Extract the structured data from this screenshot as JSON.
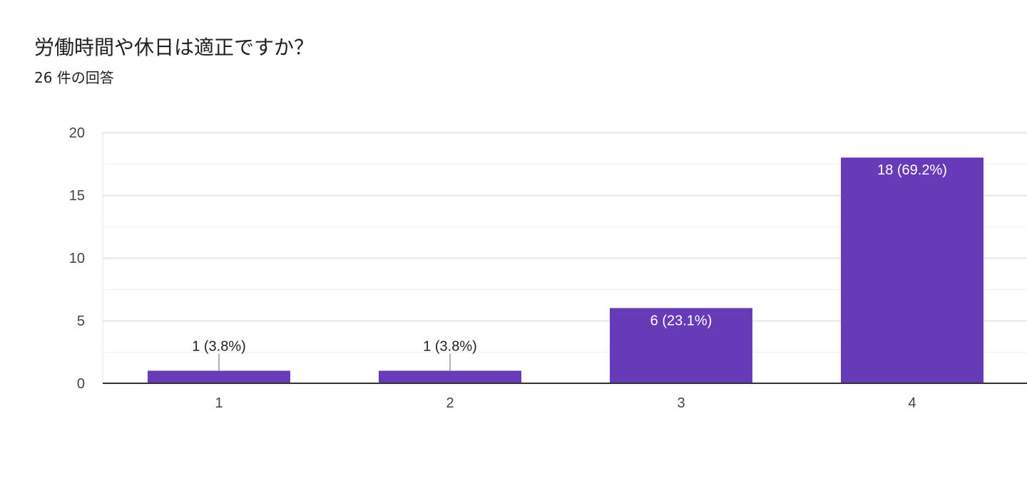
{
  "header": {
    "title": "労働時間や休日は適正ですか？",
    "subtitle": "26 件の回答"
  },
  "colors": {
    "bar": "#673ab7",
    "label_inside": "#ffffff",
    "label_outside": "#222222",
    "leader_line": "#999999",
    "grid_major": "#e6e6e6",
    "grid_minor": "#f2f2f2",
    "baseline": "#333333"
  },
  "chart_data": {
    "type": "bar",
    "title": "労働時間や休日は適正ですか？",
    "subtitle": "26 件の回答",
    "categories": [
      "1",
      "2",
      "3",
      "4"
    ],
    "values": [
      1,
      1,
      6,
      18
    ],
    "data_labels": [
      "1 (3.8%)",
      "1 (3.8%)",
      "6 (23.1%)",
      "18 (69.2%)"
    ],
    "y_ticks": [
      0,
      5,
      10,
      15,
      20
    ],
    "ylim": [
      0,
      20
    ],
    "xlabel": "",
    "ylabel": "",
    "grid": true,
    "legend": "none"
  }
}
